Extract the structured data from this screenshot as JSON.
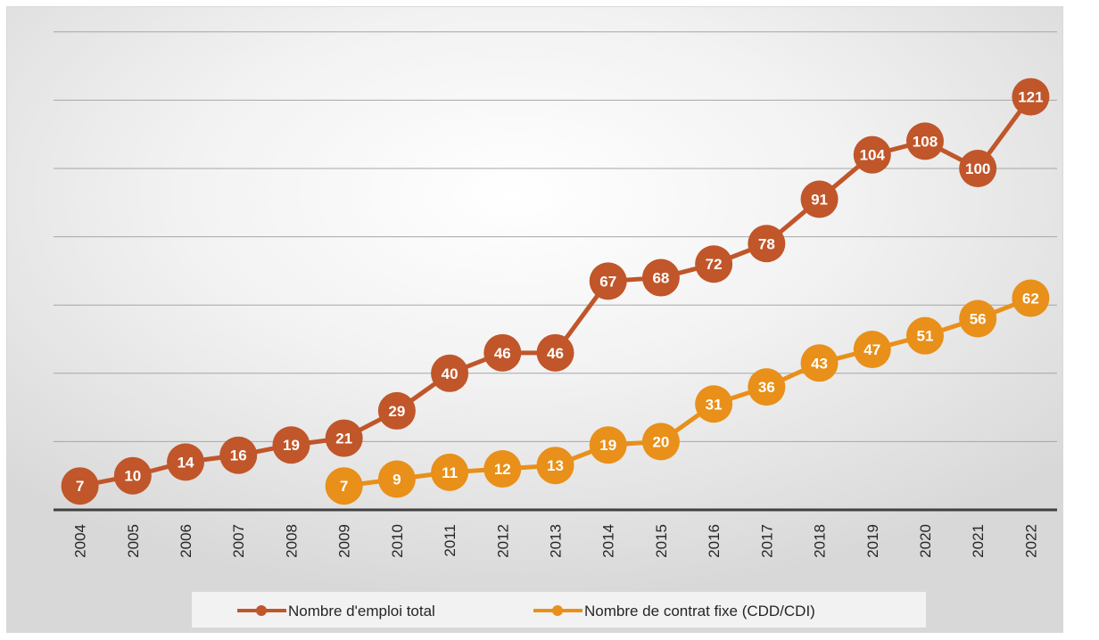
{
  "chart_data": {
    "type": "line",
    "title": "",
    "xlabel": "",
    "ylabel": "",
    "categories": [
      "2004",
      "2005",
      "2006",
      "2007",
      "2008",
      "2009",
      "2010",
      "2011",
      "2012",
      "2013",
      "2014",
      "2015",
      "2016",
      "2017",
      "2018",
      "2019",
      "2020",
      "2021",
      "2022"
    ],
    "ylim": [
      0,
      140
    ],
    "gridlines": [
      20,
      40,
      60,
      80,
      100,
      120,
      140
    ],
    "grid": true,
    "legend_position": "bottom",
    "series": [
      {
        "name": "Nombre d'emploi total",
        "color": "#c0562a",
        "values": [
          7,
          10,
          14,
          16,
          19,
          21,
          29,
          40,
          46,
          46,
          67,
          68,
          72,
          78,
          91,
          104,
          108,
          100,
          121
        ]
      },
      {
        "name": "Nombre de contrat fixe (CDD/CDI)",
        "color": "#e8901a",
        "values": [
          null,
          null,
          null,
          null,
          null,
          7,
          9,
          11,
          12,
          13,
          19,
          20,
          31,
          36,
          43,
          47,
          51,
          56,
          62
        ]
      }
    ]
  }
}
